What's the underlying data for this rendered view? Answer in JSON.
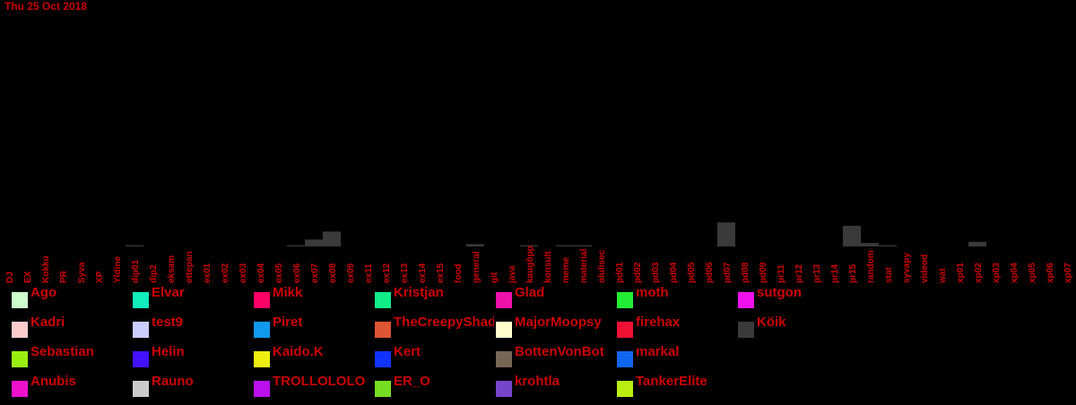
{
  "header": {
    "date": "Thu 25 Oct 2018"
  },
  "chart_data": {
    "type": "bar",
    "stacked": true,
    "title": "",
    "xlabel": "",
    "ylabel": "",
    "ylim": [
      0,
      100
    ],
    "grid": false,
    "legend_position": "bottom",
    "categories": [
      "DJ",
      "EX",
      "Kokku",
      "PR",
      "Syva",
      "XP",
      "Yldine",
      "dip01",
      "dip2",
      "eksam",
      "ettepan",
      "ex01",
      "ex02",
      "ex03",
      "ex04",
      "ex05",
      "ex06",
      "ex07",
      "ex08",
      "ex09",
      "ex11",
      "ex12",
      "ex13",
      "ex14",
      "ex15",
      "food",
      "general",
      "git",
      "java",
      "kaugõpp",
      "konsult",
      "meme",
      "material",
      "olulisec",
      "pd01",
      "pd02",
      "pd03",
      "pd04",
      "pd05",
      "pd06",
      "pd07",
      "pd08",
      "pd09",
      "pr11",
      "pr12",
      "pr13",
      "pr14",
      "pr15",
      "random",
      "stat",
      "syvapy",
      "videod",
      "wat",
      "xp01",
      "xp02",
      "xp03",
      "xp04",
      "xp05",
      "xp06",
      "xp07"
    ],
    "series": [
      {
        "name": "Köik",
        "color": "#3a3a3a",
        "values": [
          0,
          0,
          0,
          0,
          0,
          0,
          0,
          0.5,
          0,
          0,
          0,
          0,
          0,
          0,
          0,
          0,
          0.5,
          3,
          6.5,
          0,
          0,
          0,
          0,
          0,
          0,
          0,
          1,
          0,
          0,
          0.5,
          0,
          0.5,
          0.5,
          0,
          0,
          0,
          0,
          0,
          0,
          0,
          10.5,
          0,
          0,
          0,
          0,
          0,
          0,
          9,
          1.5,
          0.5,
          0,
          0,
          0,
          0,
          2,
          0,
          0,
          0,
          0,
          0
        ]
      }
    ]
  },
  "legend": {
    "items": [
      {
        "name": "Ago",
        "color": "#ccffcc"
      },
      {
        "name": "Kadri",
        "color": "#ffcccc"
      },
      {
        "name": "Sebastian",
        "color": "#99ee11"
      },
      {
        "name": "Anubis",
        "color": "#ee11cc"
      },
      {
        "name": "Elvar",
        "color": "#11eebb"
      },
      {
        "name": "test9",
        "color": "#ccccff"
      },
      {
        "name": "Helin",
        "color": "#4411ff"
      },
      {
        "name": "Rauno",
        "color": "#cccccc"
      },
      {
        "name": "Mikk",
        "color": "#ff0066"
      },
      {
        "name": "Piret",
        "color": "#1199ee"
      },
      {
        "name": "Kaido.K",
        "color": "#eeee11"
      },
      {
        "name": "TROLLOLOLO",
        "color": "#bb11ee"
      },
      {
        "name": "Kristjan",
        "color": "#11ee88"
      },
      {
        "name": "TheCreepyShadow",
        "color": "#dd5533"
      },
      {
        "name": "Kert",
        "color": "#1133ff"
      },
      {
        "name": "ER_O",
        "color": "#77dd22"
      },
      {
        "name": "Glad",
        "color": "#ee11aa"
      },
      {
        "name": "MajorMoopsy",
        "color": "#ffffcc"
      },
      {
        "name": "BottenVonBot",
        "color": "#776655"
      },
      {
        "name": "krohtla",
        "color": "#7744cc"
      },
      {
        "name": "moth",
        "color": "#22ee33"
      },
      {
        "name": "firehax",
        "color": "#ee1133"
      },
      {
        "name": "markal",
        "color": "#1166ee"
      },
      {
        "name": "TankerElite",
        "color": "#bbee11"
      },
      {
        "name": "sutgon",
        "color": "#ee11ee"
      },
      {
        "name": "Köik",
        "color": "#3a3a3a"
      }
    ]
  }
}
